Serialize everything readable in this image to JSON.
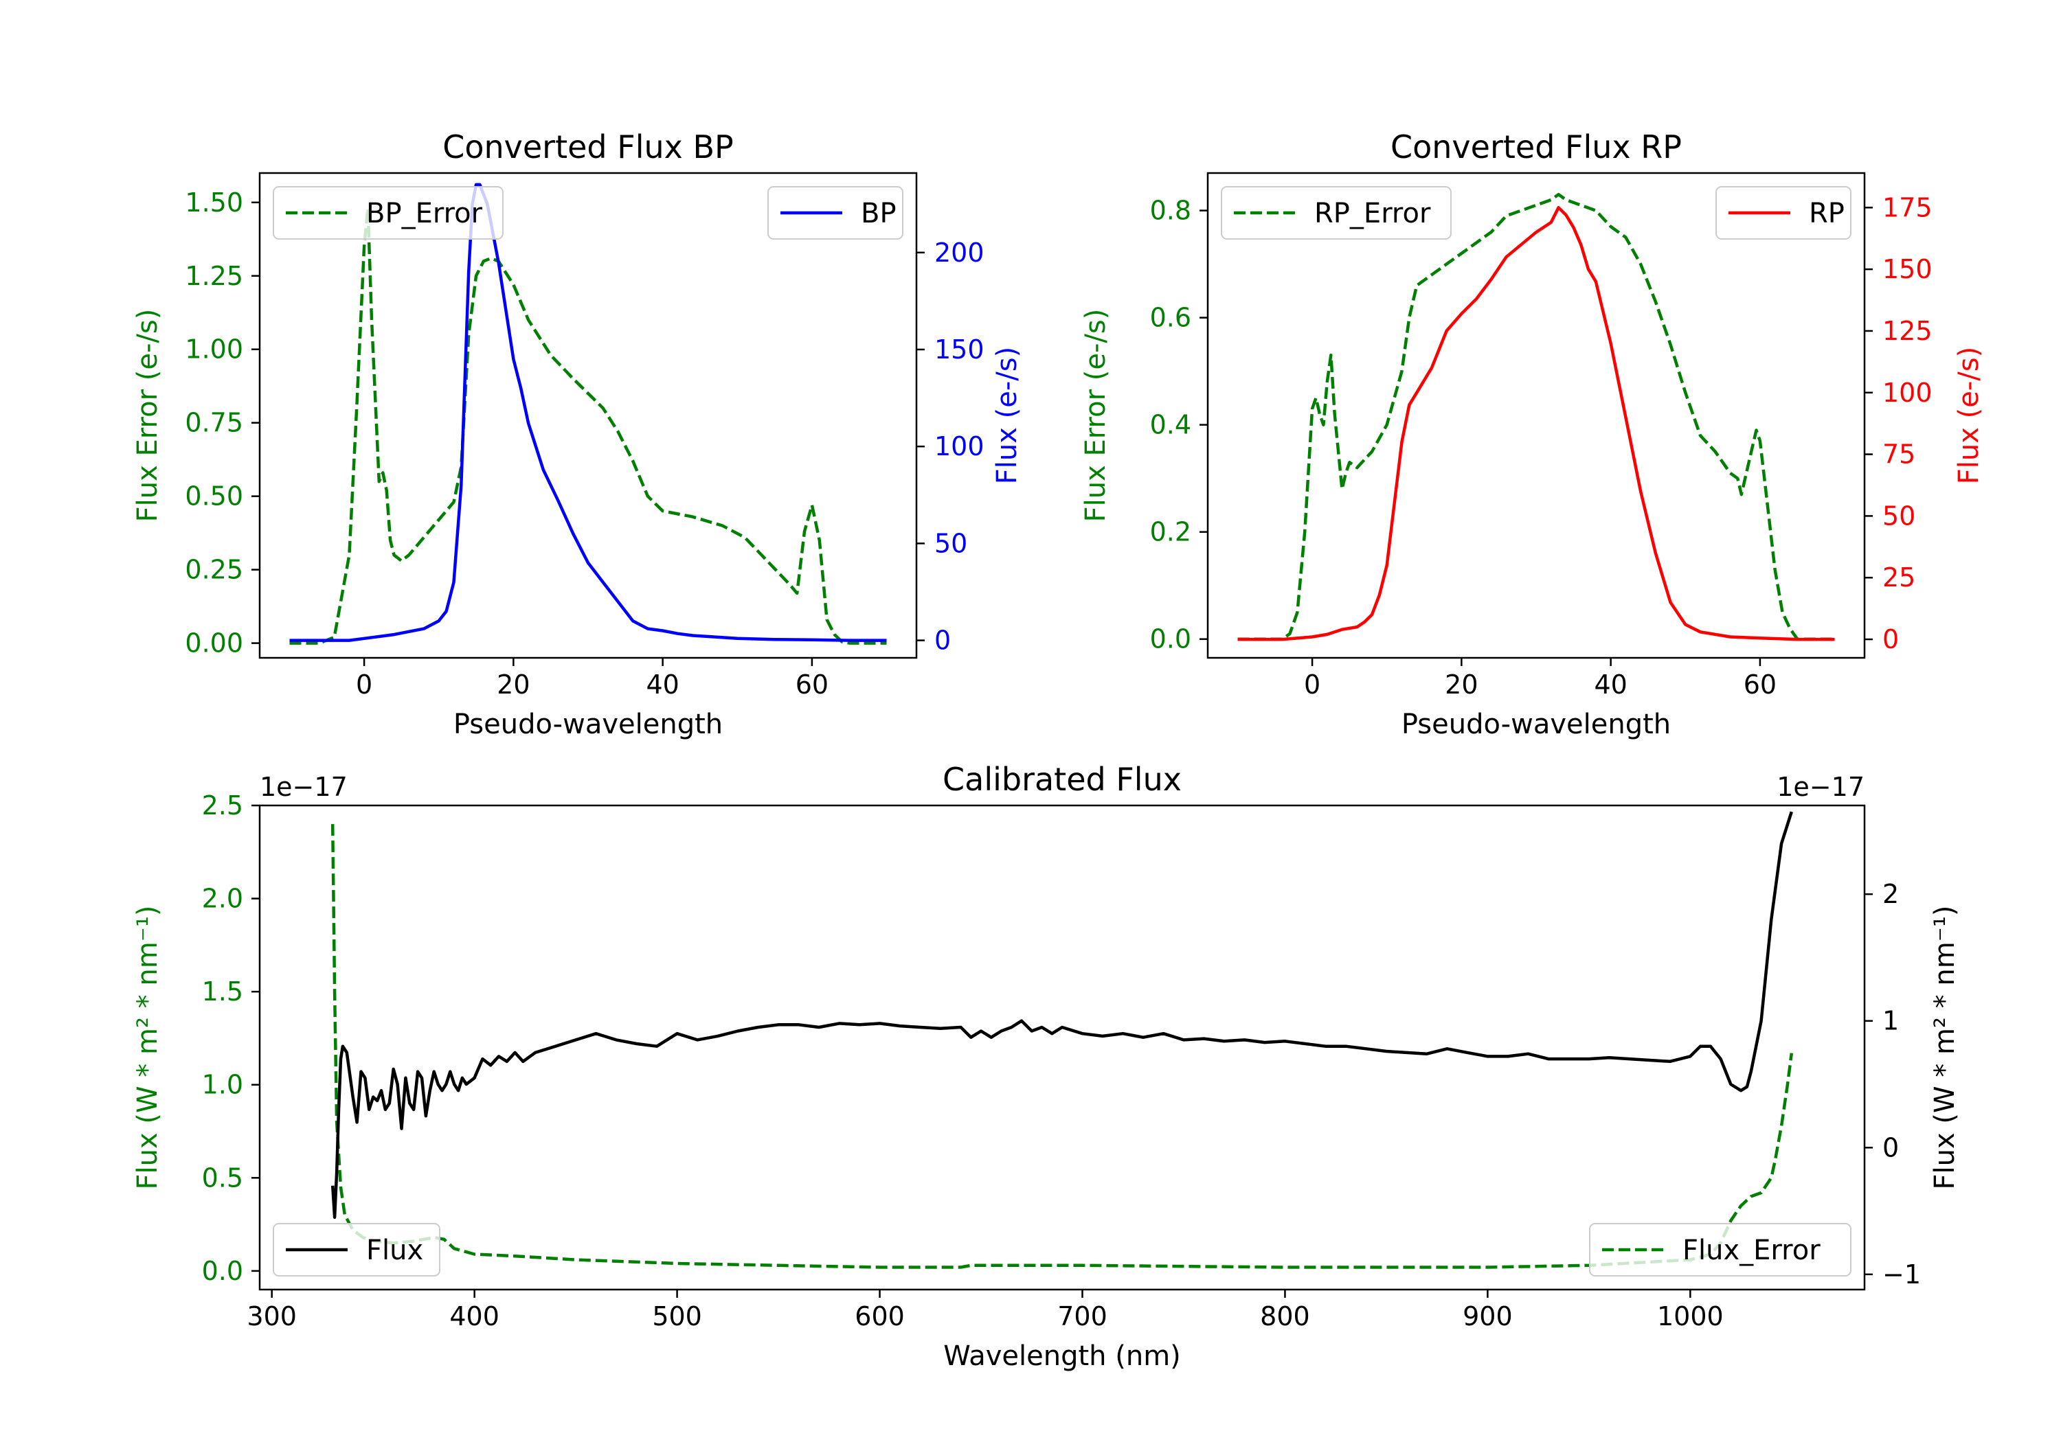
{
  "chart_data": [
    {
      "id": "bp",
      "type": "line",
      "title": "Converted Flux BP",
      "xlabel": "Pseudo-wavelength",
      "ylabel_left": "Flux Error (e-/s)",
      "ylabel_right": "Flux (e-/s)",
      "xlim": [
        -14,
        74
      ],
      "ylim_left": [
        -0.05,
        1.6
      ],
      "ylim_right": [
        -9,
        241
      ],
      "x_ticks": [
        "0",
        "20",
        "40",
        "60"
      ],
      "x_tick_values": [
        0,
        20,
        40,
        60
      ],
      "y_left_ticks": [
        "0.00",
        "0.25",
        "0.50",
        "0.75",
        "1.00",
        "1.25",
        "1.50"
      ],
      "y_left_tick_values": [
        0,
        0.25,
        0.5,
        0.75,
        1.0,
        1.25,
        1.5
      ],
      "y_right_ticks": [
        "0",
        "50",
        "100",
        "150",
        "200"
      ],
      "y_right_tick_values": [
        0,
        50,
        100,
        150,
        200
      ],
      "left_color": "#008000",
      "right_color": "#0000ff",
      "legend_left": {
        "label": "BP_Error",
        "position": "top-left"
      },
      "legend_right": {
        "label": "BP",
        "position": "top-right"
      },
      "series": [
        {
          "name": "BP_Error",
          "axis": "left",
          "style": "dashed",
          "color": "#008000",
          "x": [
            -10,
            -6,
            -4,
            -2,
            -1,
            0,
            0.5,
            1,
            2,
            2.5,
            3,
            3.5,
            4,
            5,
            6,
            8,
            10,
            12,
            13,
            14,
            15,
            16,
            17,
            18,
            19,
            20,
            22,
            25,
            28,
            32,
            34,
            36,
            38,
            40,
            44,
            48,
            51,
            54,
            57,
            58,
            59,
            60,
            61,
            62,
            63,
            64,
            65,
            70
          ],
          "y": [
            0,
            0,
            0.02,
            0.3,
            0.8,
            1.35,
            1.48,
            1.1,
            0.55,
            0.58,
            0.52,
            0.35,
            0.3,
            0.28,
            0.3,
            0.36,
            0.42,
            0.48,
            0.6,
            1.05,
            1.25,
            1.3,
            1.31,
            1.3,
            1.26,
            1.22,
            1.1,
            0.98,
            0.9,
            0.8,
            0.72,
            0.62,
            0.5,
            0.45,
            0.43,
            0.4,
            0.36,
            0.28,
            0.2,
            0.17,
            0.38,
            0.47,
            0.35,
            0.08,
            0.03,
            0.005,
            0,
            0
          ]
        },
        {
          "name": "BP",
          "axis": "right",
          "style": "solid",
          "color": "#0000ff",
          "x": [
            -10,
            -2,
            0,
            4,
            8,
            10,
            11,
            12,
            13,
            14,
            14.5,
            15,
            15.5,
            16,
            16.5,
            17,
            18,
            19,
            20,
            21,
            22,
            24,
            26,
            28,
            30,
            32,
            34,
            36,
            38,
            40,
            42,
            44,
            46,
            50,
            55,
            60,
            65,
            70
          ],
          "y": [
            0,
            0,
            1,
            3,
            6,
            10,
            15,
            30,
            80,
            190,
            225,
            235,
            235,
            230,
            225,
            215,
            195,
            170,
            145,
            130,
            112,
            88,
            72,
            55,
            40,
            30,
            20,
            10,
            6,
            5,
            3.5,
            2.5,
            2,
            1,
            0.5,
            0.3,
            0,
            0
          ]
        }
      ]
    },
    {
      "id": "rp",
      "type": "line",
      "title": "Converted Flux RP",
      "xlabel": "Pseudo-wavelength",
      "ylabel_left": "Flux Error (e-/s)",
      "ylabel_right": "Flux (e-/s)",
      "xlim": [
        -14,
        74
      ],
      "ylim_left": [
        -0.035,
        0.87
      ],
      "ylim_right": [
        -7.5,
        189
      ],
      "x_ticks": [
        "0",
        "20",
        "40",
        "60"
      ],
      "x_tick_values": [
        0,
        20,
        40,
        60
      ],
      "y_left_ticks": [
        "0.0",
        "0.2",
        "0.4",
        "0.6",
        "0.8"
      ],
      "y_left_tick_values": [
        0,
        0.2,
        0.4,
        0.6,
        0.8
      ],
      "y_right_ticks": [
        "0",
        "25",
        "50",
        "75",
        "100",
        "125",
        "150",
        "175"
      ],
      "y_right_tick_values": [
        0,
        25,
        50,
        75,
        100,
        125,
        150,
        175
      ],
      "left_color": "#008000",
      "right_color": "#ff0000",
      "legend_left": {
        "label": "RP_Error",
        "position": "top-left"
      },
      "legend_right": {
        "label": "RP",
        "position": "top-right"
      },
      "series": [
        {
          "name": "RP_Error",
          "axis": "left",
          "style": "dashed",
          "color": "#008000",
          "x": [
            -10,
            -4,
            -3,
            -2,
            -1,
            0,
            0.5,
            1,
            1.5,
            2,
            2.5,
            3,
            3.5,
            4,
            4.5,
            5,
            6,
            8,
            10,
            12,
            13,
            14,
            16,
            18,
            20,
            22,
            24,
            26,
            28,
            30,
            32,
            33,
            34,
            36,
            38,
            40,
            42,
            44,
            46,
            48,
            50,
            52,
            54,
            55,
            56,
            57,
            57.5,
            58,
            59,
            59.5,
            60,
            61,
            62,
            63,
            64,
            65,
            70
          ],
          "y": [
            0,
            0,
            0.01,
            0.05,
            0.2,
            0.43,
            0.45,
            0.42,
            0.4,
            0.48,
            0.53,
            0.42,
            0.35,
            0.28,
            0.31,
            0.33,
            0.32,
            0.35,
            0.4,
            0.5,
            0.6,
            0.66,
            0.68,
            0.7,
            0.72,
            0.74,
            0.76,
            0.79,
            0.8,
            0.81,
            0.82,
            0.83,
            0.82,
            0.81,
            0.8,
            0.77,
            0.75,
            0.7,
            0.63,
            0.55,
            0.46,
            0.38,
            0.35,
            0.33,
            0.31,
            0.3,
            0.27,
            0.3,
            0.36,
            0.39,
            0.37,
            0.25,
            0.13,
            0.05,
            0.02,
            0,
            0
          ]
        },
        {
          "name": "RP",
          "axis": "right",
          "style": "solid",
          "color": "#ff0000",
          "x": [
            -10,
            -4,
            0,
            2,
            4,
            6,
            7,
            8,
            9,
            10,
            11,
            12,
            13,
            14,
            16,
            18,
            20,
            22,
            24,
            26,
            28,
            30,
            32,
            33,
            34,
            35,
            36,
            37,
            38,
            40,
            42,
            44,
            46,
            48,
            50,
            52,
            56,
            60,
            65,
            70
          ],
          "y": [
            0,
            0,
            1,
            2,
            4,
            5,
            7,
            10,
            18,
            30,
            55,
            80,
            95,
            100,
            110,
            125,
            132,
            138,
            146,
            155,
            160,
            165,
            169,
            175,
            172,
            167,
            160,
            150,
            145,
            120,
            90,
            60,
            35,
            15,
            6,
            3,
            1,
            0.5,
            0,
            0
          ]
        }
      ]
    },
    {
      "id": "calibrated",
      "type": "line",
      "title": "Calibrated Flux",
      "xlabel": "Wavelength (nm)",
      "ylabel_left": "Flux (W * m² * nm⁻¹)",
      "ylabel_right": "Flux (W * m² * nm⁻¹)",
      "offset_left": "1e−17",
      "offset_right": "1e−17",
      "xlim": [
        294,
        1086
      ],
      "ylim_left": [
        -0.1,
        2.5
      ],
      "ylim_right": [
        -1.12,
        2.7
      ],
      "x_ticks": [
        "300",
        "400",
        "500",
        "600",
        "700",
        "800",
        "900",
        "1000"
      ],
      "x_tick_values": [
        300,
        400,
        500,
        600,
        700,
        800,
        900,
        1000
      ],
      "y_left_ticks": [
        "0.0",
        "0.5",
        "1.0",
        "1.5",
        "2.0",
        "2.5"
      ],
      "y_left_tick_values": [
        0,
        0.5,
        1.0,
        1.5,
        2.0,
        2.5
      ],
      "y_right_ticks": [
        "−1",
        "0",
        "1",
        "2"
      ],
      "y_right_tick_values": [
        -1,
        0,
        1,
        2
      ],
      "left_color": "#008000",
      "right_color": "#000000",
      "legend_left": {
        "label": "Flux",
        "position": "bottom-left"
      },
      "legend_right": {
        "label": "Flux_Error",
        "position": "bottom-right"
      },
      "series": [
        {
          "name": "Flux_Error",
          "axis": "left",
          "style": "dashed",
          "color": "#008000",
          "x": [
            330,
            331,
            332,
            334,
            336,
            340,
            345,
            350,
            360,
            370,
            380,
            385,
            390,
            400,
            420,
            450,
            500,
            550,
            600,
            640,
            645,
            700,
            800,
            900,
            950,
            1000,
            1010,
            1015,
            1020,
            1025,
            1030,
            1035,
            1040,
            1042,
            1045,
            1048,
            1050
          ],
          "y": [
            2.4,
            1.5,
            0.8,
            0.45,
            0.3,
            0.22,
            0.18,
            0.16,
            0.15,
            0.16,
            0.18,
            0.17,
            0.12,
            0.09,
            0.08,
            0.06,
            0.04,
            0.03,
            0.02,
            0.02,
            0.03,
            0.03,
            0.02,
            0.02,
            0.03,
            0.06,
            0.09,
            0.15,
            0.27,
            0.35,
            0.4,
            0.42,
            0.5,
            0.6,
            0.78,
            1.0,
            1.17
          ]
        },
        {
          "name": "Flux",
          "axis": "right",
          "style": "solid",
          "color": "#000000",
          "x": [
            330,
            331,
            332,
            333,
            334,
            335,
            337,
            340,
            342,
            344,
            346,
            348,
            350,
            352,
            354,
            356,
            358,
            360,
            362,
            364,
            366,
            368,
            370,
            372,
            374,
            376,
            378,
            380,
            382,
            384,
            386,
            388,
            390,
            392,
            394,
            396,
            400,
            404,
            408,
            412,
            416,
            420,
            424,
            430,
            440,
            450,
            460,
            470,
            480,
            490,
            500,
            510,
            520,
            530,
            540,
            550,
            560,
            570,
            580,
            590,
            600,
            610,
            620,
            630,
            640,
            645,
            650,
            655,
            660,
            665,
            670,
            675,
            680,
            685,
            690,
            700,
            710,
            720,
            730,
            740,
            750,
            760,
            770,
            780,
            790,
            800,
            810,
            820,
            830,
            840,
            850,
            860,
            870,
            880,
            890,
            900,
            910,
            920,
            930,
            940,
            950,
            960,
            970,
            980,
            990,
            1000,
            1005,
            1010,
            1015,
            1020,
            1025,
            1028,
            1030,
            1035,
            1040,
            1045,
            1050
          ],
          "y": [
            -0.3,
            -0.55,
            -0.2,
            0.3,
            0.7,
            0.8,
            0.75,
            0.4,
            0.2,
            0.6,
            0.55,
            0.3,
            0.4,
            0.37,
            0.45,
            0.3,
            0.35,
            0.62,
            0.5,
            0.15,
            0.55,
            0.35,
            0.3,
            0.6,
            0.55,
            0.25,
            0.45,
            0.6,
            0.5,
            0.45,
            0.5,
            0.6,
            0.5,
            0.45,
            0.55,
            0.5,
            0.55,
            0.7,
            0.65,
            0.72,
            0.68,
            0.75,
            0.68,
            0.75,
            0.8,
            0.85,
            0.9,
            0.85,
            0.82,
            0.8,
            0.9,
            0.85,
            0.88,
            0.92,
            0.95,
            0.97,
            0.97,
            0.95,
            0.98,
            0.97,
            0.98,
            0.96,
            0.95,
            0.94,
            0.95,
            0.87,
            0.92,
            0.87,
            0.92,
            0.95,
            1.0,
            0.92,
            0.95,
            0.9,
            0.95,
            0.9,
            0.88,
            0.9,
            0.87,
            0.9,
            0.85,
            0.86,
            0.84,
            0.85,
            0.83,
            0.84,
            0.82,
            0.8,
            0.8,
            0.78,
            0.76,
            0.75,
            0.74,
            0.78,
            0.75,
            0.72,
            0.72,
            0.74,
            0.7,
            0.7,
            0.7,
            0.71,
            0.7,
            0.69,
            0.68,
            0.72,
            0.8,
            0.8,
            0.7,
            0.5,
            0.45,
            0.48,
            0.6,
            1.0,
            1.8,
            2.4,
            2.65
          ]
        }
      ]
    }
  ]
}
